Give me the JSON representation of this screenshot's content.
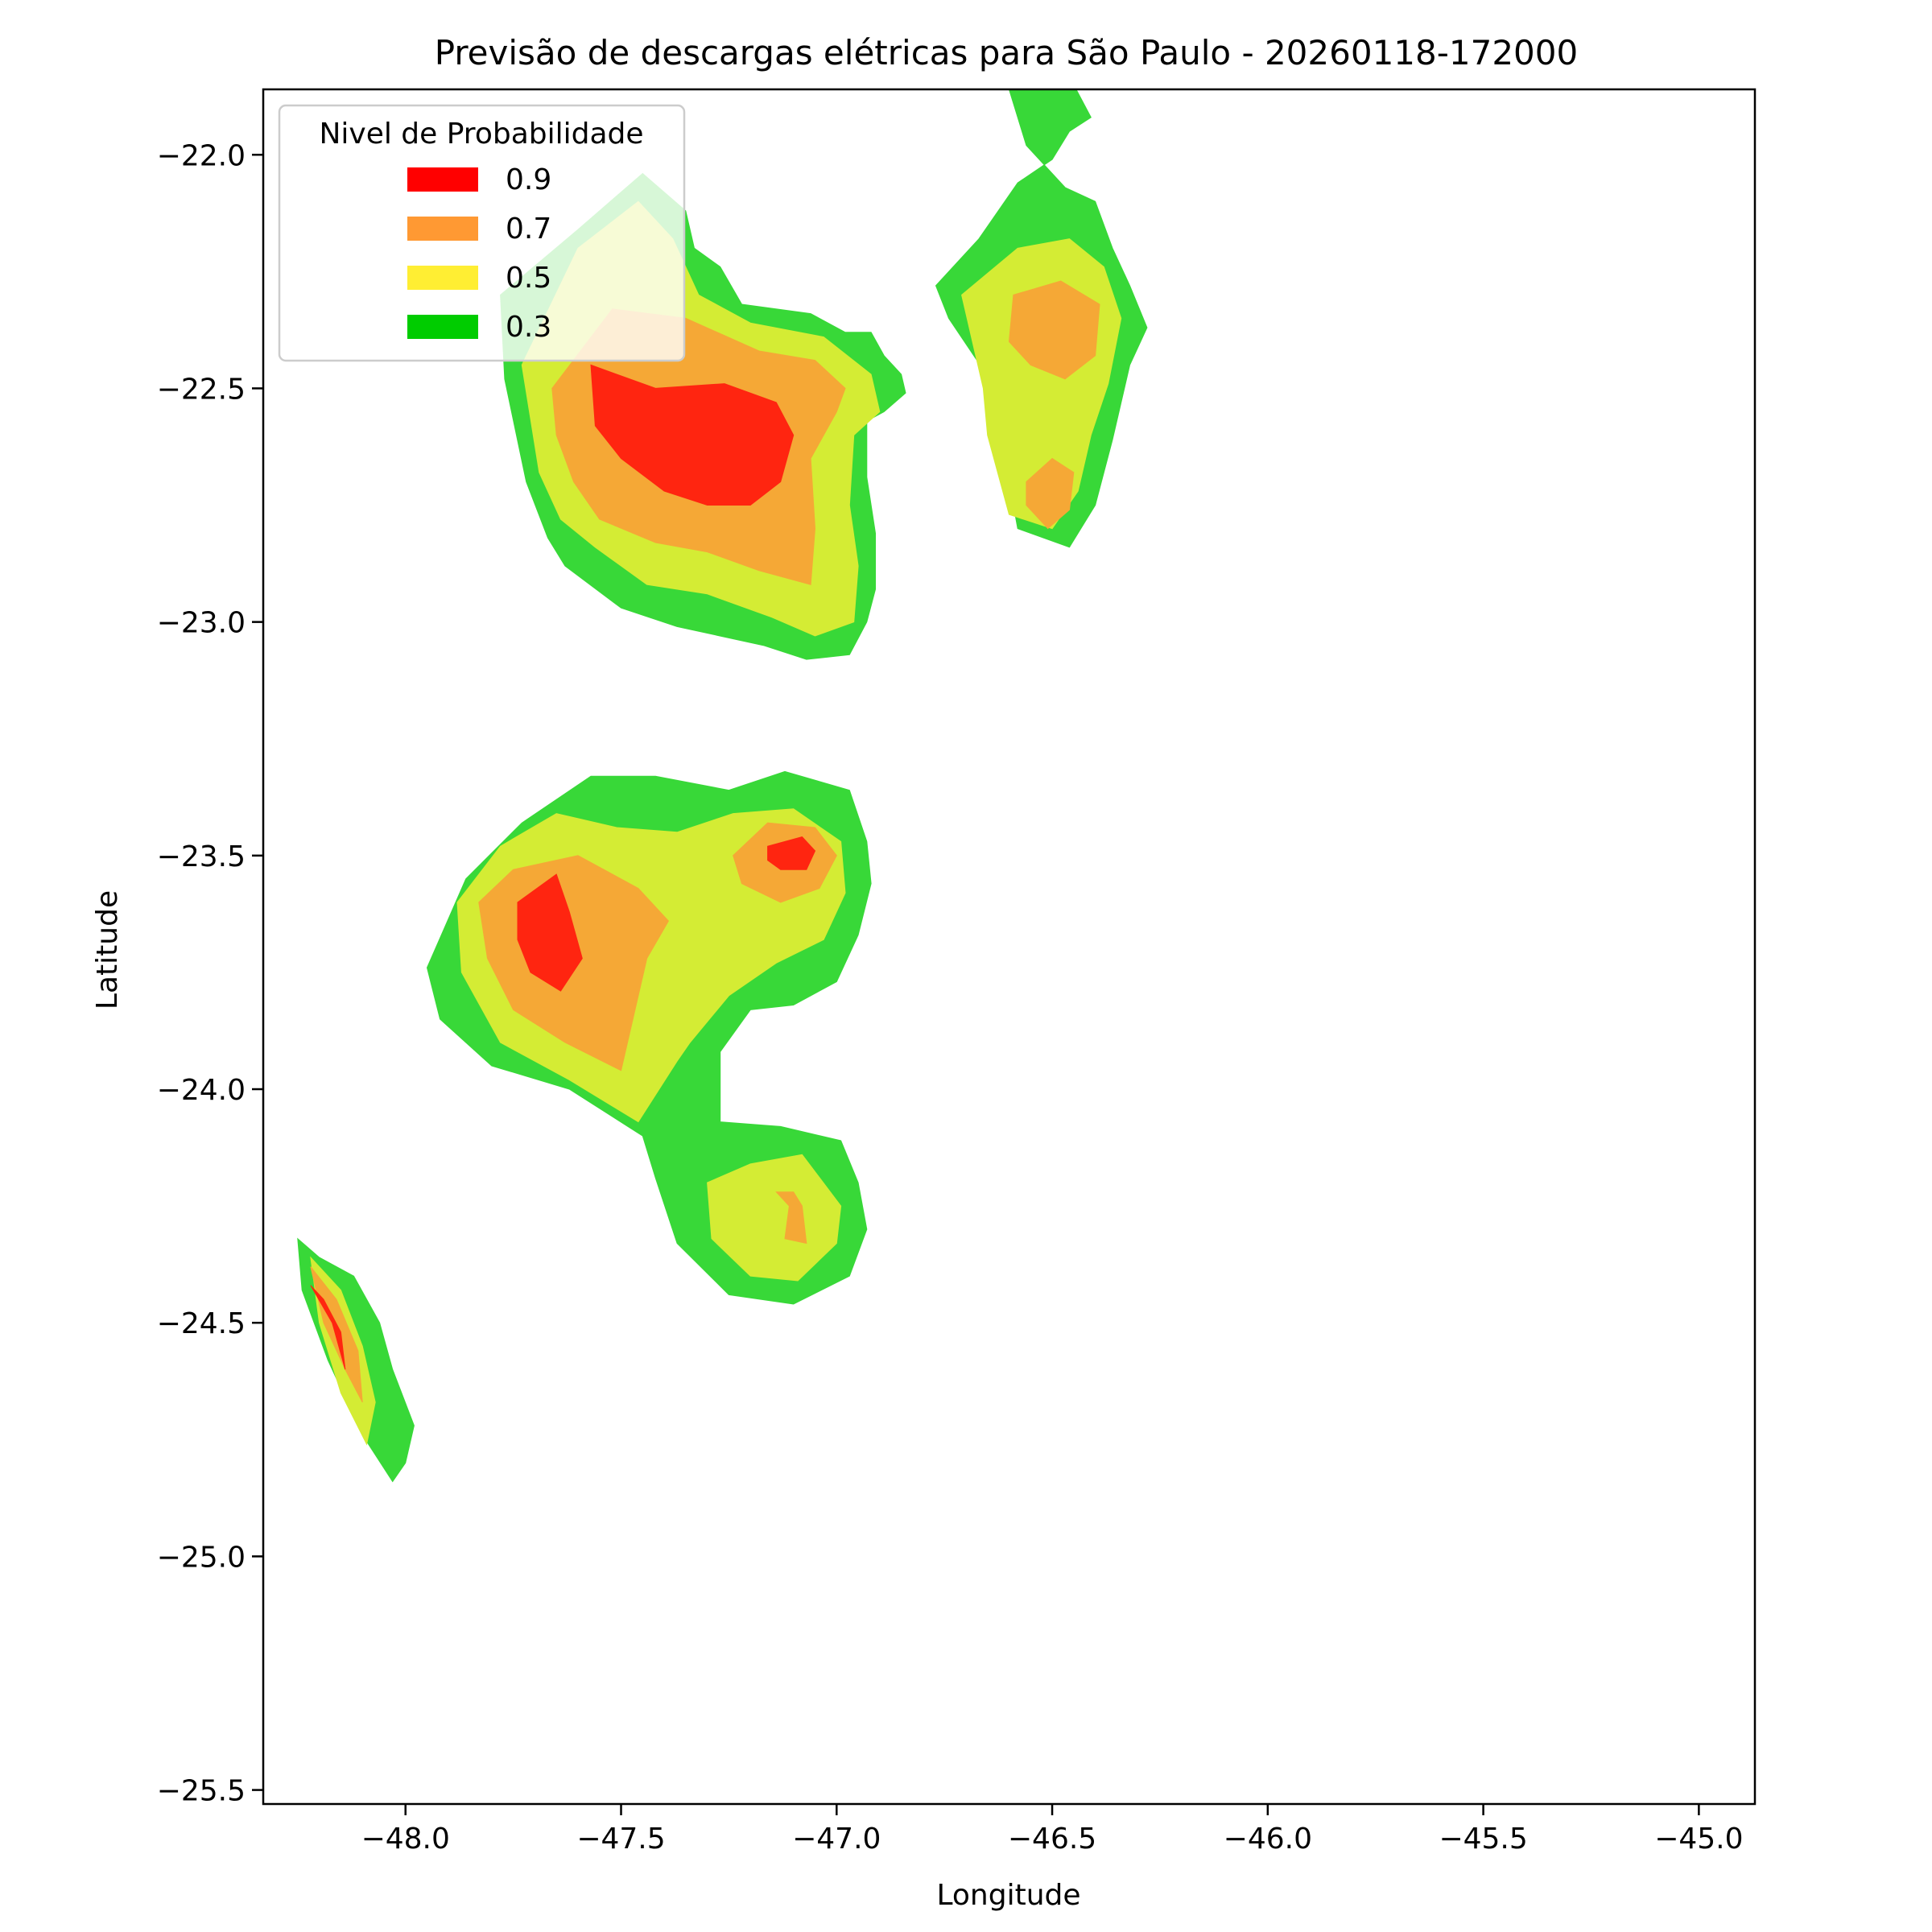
{
  "chart_data": {
    "type": "heatmap",
    "title": "Previsão de descargas elétricas para São Paulo - 20260118-172000",
    "xlabel": "Longitude",
    "ylabel": "Latitude",
    "xlim": [
      -48.33,
      -44.87
    ],
    "ylim": [
      -25.53,
      -21.86
    ],
    "x_ticks": [
      -48.0,
      -47.5,
      -47.0,
      -46.5,
      -46.0,
      -45.5,
      -45.0
    ],
    "x_tick_labels": [
      "−48.0",
      "−47.5",
      "−47.0",
      "−46.5",
      "−46.0",
      "−45.5",
      "−45.0"
    ],
    "y_ticks": [
      -22.0,
      -22.5,
      -23.0,
      -23.5,
      -24.0,
      -24.5,
      -25.0,
      -25.5
    ],
    "y_tick_labels": [
      "−22.0",
      "−22.5",
      "−23.0",
      "−23.5",
      "−24.0",
      "−24.5",
      "−25.0",
      "−25.5"
    ],
    "grid": false,
    "legend": {
      "title": "Nivel de Probabilidade",
      "placement": "upper-left",
      "entries": [
        {
          "label": "0.9",
          "color": "#ff0000"
        },
        {
          "label": "0.7",
          "color": "#ff9933"
        },
        {
          "label": "0.5",
          "color": "#ffee33"
        },
        {
          "label": "0.3",
          "color": "#00cc00"
        }
      ]
    },
    "level_colors": {
      "0.3": "#38d838",
      "0.5": "#d4ec34",
      "0.7": "#f5a836",
      "0.9": "#ff2510"
    },
    "regions": [
      {
        "level": "0.3",
        "polygons": [
          [
            [
              -47.78,
              -22.3
            ],
            [
              -47.6,
              -22.16
            ],
            [
              -47.45,
              -22.04
            ],
            [
              -47.35,
              -22.12
            ],
            [
              -47.33,
              -22.2
            ],
            [
              -47.27,
              -22.24
            ],
            [
              -47.22,
              -22.32
            ],
            [
              -47.06,
              -22.34
            ],
            [
              -46.98,
              -22.38
            ],
            [
              -46.92,
              -22.38
            ],
            [
              -46.89,
              -22.43
            ],
            [
              -46.85,
              -22.47
            ],
            [
              -46.84,
              -22.51
            ],
            [
              -46.89,
              -22.55
            ],
            [
              -46.93,
              -22.57
            ],
            [
              -46.93,
              -22.69
            ],
            [
              -46.91,
              -22.81
            ],
            [
              -46.91,
              -22.93
            ],
            [
              -46.93,
              -23.0
            ],
            [
              -46.97,
              -23.07
            ],
            [
              -47.07,
              -23.08
            ],
            [
              -47.17,
              -23.05
            ],
            [
              -47.37,
              -23.01
            ],
            [
              -47.5,
              -22.97
            ],
            [
              -47.63,
              -22.88
            ],
            [
              -47.67,
              -22.82
            ],
            [
              -47.72,
              -22.7
            ],
            [
              -47.77,
              -22.48
            ]
          ],
          [
            [
              -46.77,
              -22.28
            ],
            [
              -46.67,
              -22.18
            ],
            [
              -46.58,
              -22.06
            ],
            [
              -46.5,
              -22.01
            ],
            [
              -46.46,
              -21.95
            ],
            [
              -46.41,
              -21.92
            ],
            [
              -46.45,
              -21.85
            ],
            [
              -46.6,
              -21.86
            ],
            [
              -46.56,
              -21.98
            ],
            [
              -46.47,
              -22.07
            ],
            [
              -46.4,
              -22.1
            ],
            [
              -46.36,
              -22.2
            ],
            [
              -46.32,
              -22.28
            ],
            [
              -46.28,
              -22.37
            ],
            [
              -46.32,
              -22.45
            ],
            [
              -46.36,
              -22.61
            ],
            [
              -46.4,
              -22.75
            ],
            [
              -46.46,
              -22.84
            ],
            [
              -46.58,
              -22.8
            ],
            [
              -46.62,
              -22.6
            ],
            [
              -46.66,
              -22.46
            ],
            [
              -46.74,
              -22.35
            ]
          ],
          [
            [
              -47.95,
              -23.74
            ],
            [
              -47.86,
              -23.55
            ],
            [
              -47.73,
              -23.43
            ],
            [
              -47.57,
              -23.33
            ],
            [
              -47.42,
              -23.33
            ],
            [
              -47.25,
              -23.36
            ],
            [
              -47.12,
              -23.32
            ],
            [
              -46.97,
              -23.36
            ],
            [
              -46.93,
              -23.47
            ],
            [
              -46.92,
              -23.56
            ],
            [
              -46.95,
              -23.67
            ],
            [
              -47.0,
              -23.77
            ],
            [
              -47.1,
              -23.82
            ],
            [
              -47.2,
              -23.83
            ],
            [
              -47.27,
              -23.92
            ],
            [
              -47.27,
              -24.07
            ],
            [
              -47.13,
              -24.08
            ],
            [
              -46.99,
              -24.11
            ],
            [
              -46.95,
              -24.2
            ],
            [
              -46.93,
              -24.3
            ],
            [
              -46.97,
              -24.4
            ],
            [
              -47.1,
              -24.46
            ],
            [
              -47.25,
              -24.44
            ],
            [
              -47.37,
              -24.33
            ],
            [
              -47.42,
              -24.19
            ],
            [
              -47.45,
              -24.1
            ],
            [
              -47.62,
              -24.0
            ],
            [
              -47.8,
              -23.95
            ],
            [
              -47.92,
              -23.85
            ]
          ],
          [
            [
              -48.25,
              -24.32
            ],
            [
              -48.2,
              -24.36
            ],
            [
              -48.12,
              -24.4
            ],
            [
              -48.06,
              -24.5
            ],
            [
              -48.03,
              -24.6
            ],
            [
              -47.98,
              -24.72
            ],
            [
              -48.0,
              -24.8
            ],
            [
              -48.03,
              -24.84
            ],
            [
              -48.1,
              -24.74
            ],
            [
              -48.18,
              -24.58
            ],
            [
              -48.24,
              -24.43
            ]
          ]
        ]
      },
      {
        "level": "0.5",
        "polygons": [
          [
            [
              -47.73,
              -22.45
            ],
            [
              -47.6,
              -22.2
            ],
            [
              -47.46,
              -22.1
            ],
            [
              -47.38,
              -22.18
            ],
            [
              -47.32,
              -22.3
            ],
            [
              -47.2,
              -22.36
            ],
            [
              -47.03,
              -22.39
            ],
            [
              -46.92,
              -22.47
            ],
            [
              -46.9,
              -22.55
            ],
            [
              -46.96,
              -22.6
            ],
            [
              -46.97,
              -22.75
            ],
            [
              -46.95,
              -22.88
            ],
            [
              -46.96,
              -23.0
            ],
            [
              -47.05,
              -23.03
            ],
            [
              -47.15,
              -22.99
            ],
            [
              -47.3,
              -22.94
            ],
            [
              -47.44,
              -22.92
            ],
            [
              -47.56,
              -22.84
            ],
            [
              -47.64,
              -22.78
            ],
            [
              -47.69,
              -22.68
            ]
          ],
          [
            [
              -46.71,
              -22.3
            ],
            [
              -46.58,
              -22.2
            ],
            [
              -46.46,
              -22.18
            ],
            [
              -46.38,
              -22.24
            ],
            [
              -46.34,
              -22.35
            ],
            [
              -46.37,
              -22.49
            ],
            [
              -46.41,
              -22.6
            ],
            [
              -46.44,
              -22.72
            ],
            [
              -46.5,
              -22.8
            ],
            [
              -46.6,
              -22.77
            ],
            [
              -46.65,
              -22.6
            ],
            [
              -46.66,
              -22.5
            ]
          ],
          [
            [
              -47.88,
              -23.6
            ],
            [
              -47.78,
              -23.48
            ],
            [
              -47.65,
              -23.41
            ],
            [
              -47.51,
              -23.44
            ],
            [
              -47.37,
              -23.45
            ],
            [
              -47.24,
              -23.41
            ],
            [
              -47.1,
              -23.4
            ],
            [
              -46.99,
              -23.47
            ],
            [
              -46.98,
              -23.58
            ],
            [
              -47.03,
              -23.68
            ],
            [
              -47.14,
              -23.73
            ],
            [
              -47.25,
              -23.8
            ],
            [
              -47.34,
              -23.9
            ],
            [
              -47.37,
              -23.94
            ],
            [
              -47.46,
              -24.07
            ],
            [
              -47.62,
              -23.98
            ],
            [
              -47.78,
              -23.9
            ],
            [
              -47.87,
              -23.75
            ]
          ],
          [
            [
              -47.3,
              -24.2
            ],
            [
              -47.2,
              -24.16
            ],
            [
              -47.08,
              -24.14
            ],
            [
              -46.99,
              -24.25
            ],
            [
              -47.0,
              -24.33
            ],
            [
              -47.09,
              -24.41
            ],
            [
              -47.2,
              -24.4
            ],
            [
              -47.29,
              -24.32
            ]
          ],
          [
            [
              -48.22,
              -24.36
            ],
            [
              -48.15,
              -24.43
            ],
            [
              -48.1,
              -24.55
            ],
            [
              -48.07,
              -24.67
            ],
            [
              -48.09,
              -24.76
            ],
            [
              -48.15,
              -24.65
            ],
            [
              -48.2,
              -24.5
            ]
          ]
        ]
      },
      {
        "level": "0.7",
        "polygons": [
          [
            [
              -47.66,
              -22.5
            ],
            [
              -47.52,
              -22.33
            ],
            [
              -47.35,
              -22.35
            ],
            [
              -47.18,
              -22.42
            ],
            [
              -47.05,
              -22.44
            ],
            [
              -46.98,
              -22.5
            ],
            [
              -47.0,
              -22.55
            ],
            [
              -47.06,
              -22.65
            ],
            [
              -47.05,
              -22.8
            ],
            [
              -47.06,
              -22.92
            ],
            [
              -47.18,
              -22.89
            ],
            [
              -47.3,
              -22.85
            ],
            [
              -47.42,
              -22.83
            ],
            [
              -47.55,
              -22.78
            ],
            [
              -47.61,
              -22.7
            ],
            [
              -47.65,
              -22.6
            ]
          ],
          [
            [
              -46.59,
              -22.3
            ],
            [
              -46.48,
              -22.27
            ],
            [
              -46.39,
              -22.32
            ],
            [
              -46.4,
              -22.43
            ],
            [
              -46.47,
              -22.48
            ],
            [
              -46.55,
              -22.45
            ],
            [
              -46.6,
              -22.4
            ]
          ],
          [
            [
              -46.56,
              -22.7
            ],
            [
              -46.5,
              -22.65
            ],
            [
              -46.45,
              -22.68
            ],
            [
              -46.46,
              -22.76
            ],
            [
              -46.51,
              -22.8
            ],
            [
              -46.56,
              -22.75
            ]
          ],
          [
            [
              -47.83,
              -23.6
            ],
            [
              -47.75,
              -23.53
            ],
            [
              -47.6,
              -23.5
            ],
            [
              -47.46,
              -23.57
            ],
            [
              -47.39,
              -23.64
            ],
            [
              -47.44,
              -23.72
            ],
            [
              -47.48,
              -23.88
            ],
            [
              -47.5,
              -23.96
            ],
            [
              -47.63,
              -23.9
            ],
            [
              -47.75,
              -23.83
            ],
            [
              -47.81,
              -23.72
            ]
          ],
          [
            [
              -47.24,
              -23.5
            ],
            [
              -47.16,
              -23.43
            ],
            [
              -47.05,
              -23.44
            ],
            [
              -47.0,
              -23.5
            ],
            [
              -47.04,
              -23.57
            ],
            [
              -47.13,
              -23.6
            ],
            [
              -47.22,
              -23.56
            ]
          ],
          [
            [
              -47.14,
              -24.22
            ],
            [
              -47.11,
              -24.25
            ],
            [
              -47.12,
              -24.32
            ],
            [
              -47.07,
              -24.33
            ],
            [
              -47.08,
              -24.25
            ],
            [
              -47.1,
              -24.22
            ]
          ],
          [
            [
              -48.22,
              -24.38
            ],
            [
              -48.16,
              -24.45
            ],
            [
              -48.11,
              -24.56
            ],
            [
              -48.1,
              -24.67
            ],
            [
              -48.14,
              -24.6
            ],
            [
              -48.19,
              -24.5
            ]
          ]
        ]
      },
      {
        "level": "0.9",
        "polygons": [
          [
            [
              -47.57,
              -22.45
            ],
            [
              -47.42,
              -22.5
            ],
            [
              -47.26,
              -22.49
            ],
            [
              -47.14,
              -22.53
            ],
            [
              -47.1,
              -22.6
            ],
            [
              -47.13,
              -22.7
            ],
            [
              -47.2,
              -22.75
            ],
            [
              -47.3,
              -22.75
            ],
            [
              -47.4,
              -22.72
            ],
            [
              -47.5,
              -22.65
            ],
            [
              -47.56,
              -22.58
            ]
          ],
          [
            [
              -47.74,
              -23.6
            ],
            [
              -47.65,
              -23.54
            ],
            [
              -47.62,
              -23.62
            ],
            [
              -47.59,
              -23.72
            ],
            [
              -47.64,
              -23.79
            ],
            [
              -47.71,
              -23.75
            ],
            [
              -47.74,
              -23.68
            ]
          ],
          [
            [
              -47.16,
              -23.48
            ],
            [
              -47.08,
              -23.46
            ],
            [
              -47.05,
              -23.49
            ],
            [
              -47.07,
              -23.53
            ],
            [
              -47.13,
              -23.53
            ],
            [
              -47.16,
              -23.51
            ]
          ],
          [
            [
              -48.22,
              -24.42
            ],
            [
              -48.17,
              -24.5
            ],
            [
              -48.14,
              -24.6
            ],
            [
              -48.15,
              -24.52
            ],
            [
              -48.19,
              -24.45
            ]
          ]
        ]
      }
    ]
  }
}
